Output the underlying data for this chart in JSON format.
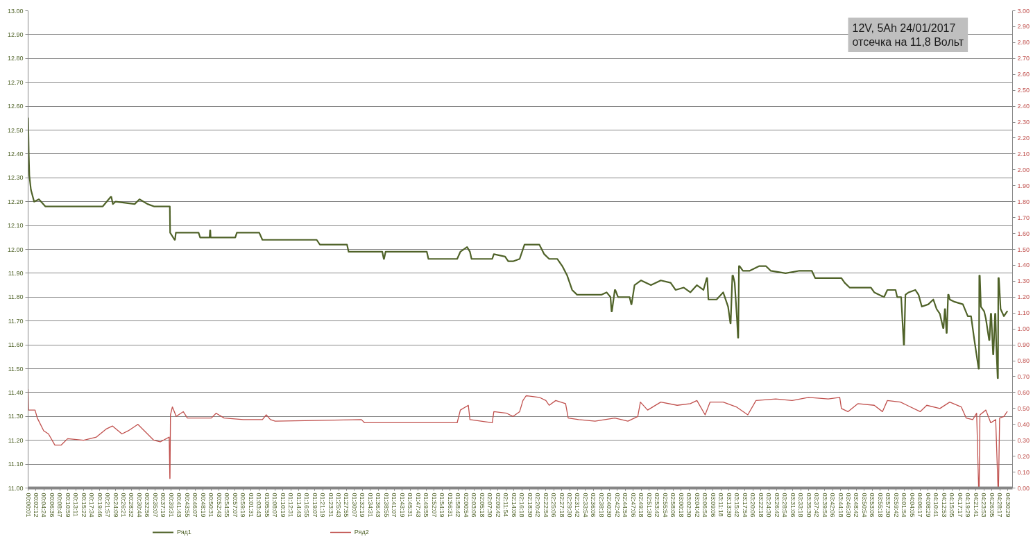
{
  "chart_data": {
    "type": "line",
    "annotations": [
      "12V, 5Ah  24/01/2017",
      "отсечка на 11,8 Вольт"
    ],
    "xlim": [
      0,
      4.53
    ],
    "xticks": [
      {
        "value": 0.0003,
        "label": "00:00:01"
      },
      {
        "value": 0.0367,
        "label": "00:02:12"
      },
      {
        "value": 0.0733,
        "label": "00:04:24"
      },
      {
        "value": 0.11,
        "label": "00:06:36"
      },
      {
        "value": 0.1464,
        "label": "00:08:47"
      },
      {
        "value": 0.1831,
        "label": "00:10:59"
      },
      {
        "value": 0.2197,
        "label": "00:13:11"
      },
      {
        "value": 0.2561,
        "label": "00:15:22"
      },
      {
        "value": 0.2928,
        "label": "00:17:34"
      },
      {
        "value": 0.3294,
        "label": "00:19:46"
      },
      {
        "value": 0.3658,
        "label": "00:21:57"
      },
      {
        "value": 0.4025,
        "label": "00:24:09"
      },
      {
        "value": 0.4392,
        "label": "00:26:21"
      },
      {
        "value": 0.4756,
        "label": "00:28:32"
      },
      {
        "value": 0.5122,
        "label": "00:30:44"
      },
      {
        "value": 0.5489,
        "label": "00:32:56"
      },
      {
        "value": 0.5853,
        "label": "00:35:07"
      },
      {
        "value": 0.6219,
        "label": "00:37:19"
      },
      {
        "value": 0.6586,
        "label": "00:39:31"
      },
      {
        "value": 0.6953,
        "label": "00:41:43"
      },
      {
        "value": 0.7319,
        "label": "00:43:55"
      },
      {
        "value": 0.7686,
        "label": "00:46:07"
      },
      {
        "value": 0.8053,
        "label": "00:48:19"
      },
      {
        "value": 0.8419,
        "label": "00:50:31"
      },
      {
        "value": 0.8786,
        "label": "00:52:43"
      },
      {
        "value": 0.9153,
        "label": "00:54:55"
      },
      {
        "value": 0.9519,
        "label": "00:57:07"
      },
      {
        "value": 0.9886,
        "label": "00:59:19"
      },
      {
        "value": 1.0253,
        "label": "01:01:31"
      },
      {
        "value": 1.0619,
        "label": "01:03:43"
      },
      {
        "value": 1.0986,
        "label": "01:05:55"
      },
      {
        "value": 1.1353,
        "label": "01:08:07"
      },
      {
        "value": 1.1719,
        "label": "01:10:19"
      },
      {
        "value": 1.2086,
        "label": "01:12:31"
      },
      {
        "value": 1.2453,
        "label": "01:14:43"
      },
      {
        "value": 1.2819,
        "label": "01:16:55"
      },
      {
        "value": 1.3186,
        "label": "01:19:07"
      },
      {
        "value": 1.3553,
        "label": "01:21:19"
      },
      {
        "value": 1.3919,
        "label": "01:23:31"
      },
      {
        "value": 1.4286,
        "label": "01:25:43"
      },
      {
        "value": 1.4653,
        "label": "01:27:55"
      },
      {
        "value": 1.5019,
        "label": "01:30:07"
      },
      {
        "value": 1.5386,
        "label": "01:32:19"
      },
      {
        "value": 1.5753,
        "label": "01:34:31"
      },
      {
        "value": 1.6119,
        "label": "01:36:43"
      },
      {
        "value": 1.6486,
        "label": "01:38:55"
      },
      {
        "value": 1.6853,
        "label": "01:41:07"
      },
      {
        "value": 1.7219,
        "label": "01:43:19"
      },
      {
        "value": 1.7586,
        "label": "01:45:31"
      },
      {
        "value": 1.7953,
        "label": "01:47:43"
      },
      {
        "value": 1.8319,
        "label": "01:49:55"
      },
      {
        "value": 1.8686,
        "label": "01:52:07"
      },
      {
        "value": 1.9053,
        "label": "01:54:19"
      },
      {
        "value": 1.9419,
        "label": "01:56:31"
      },
      {
        "value": 1.9783,
        "label": "01:58:42"
      },
      {
        "value": 2.015,
        "label": "02:00:54"
      },
      {
        "value": 2.0517,
        "label": "02:03:06"
      },
      {
        "value": 2.0883,
        "label": "02:05:18"
      },
      {
        "value": 2.125,
        "label": "02:07:30"
      },
      {
        "value": 2.1617,
        "label": "02:09:42"
      },
      {
        "value": 2.1983,
        "label": "02:11:54"
      },
      {
        "value": 2.235,
        "label": "02:14:06"
      },
      {
        "value": 2.2717,
        "label": "02:16:18"
      },
      {
        "value": 2.3083,
        "label": "02:18:30"
      },
      {
        "value": 2.345,
        "label": "02:20:42"
      },
      {
        "value": 2.3817,
        "label": "02:22:54"
      },
      {
        "value": 2.4183,
        "label": "02:25:06"
      },
      {
        "value": 2.455,
        "label": "02:27:18"
      },
      {
        "value": 2.4917,
        "label": "02:29:30"
      },
      {
        "value": 2.5283,
        "label": "02:31:42"
      },
      {
        "value": 2.565,
        "label": "02:33:54"
      },
      {
        "value": 2.6017,
        "label": "02:36:06"
      },
      {
        "value": 2.6383,
        "label": "02:38:18"
      },
      {
        "value": 2.675,
        "label": "02:40:30"
      },
      {
        "value": 2.7117,
        "label": "02:42:42"
      },
      {
        "value": 2.7483,
        "label": "02:44:54"
      },
      {
        "value": 2.785,
        "label": "02:47:06"
      },
      {
        "value": 2.8217,
        "label": "02:49:18"
      },
      {
        "value": 2.8583,
        "label": "02:51:30"
      },
      {
        "value": 2.895,
        "label": "02:53:42"
      },
      {
        "value": 2.9317,
        "label": "02:55:54"
      },
      {
        "value": 2.9683,
        "label": "02:58:06"
      },
      {
        "value": 3.005,
        "label": "03:00:18"
      },
      {
        "value": 3.0417,
        "label": "03:02:30"
      },
      {
        "value": 3.0783,
        "label": "03:04:42"
      },
      {
        "value": 3.115,
        "label": "03:06:54"
      },
      {
        "value": 3.1517,
        "label": "03:09:06"
      },
      {
        "value": 3.1883,
        "label": "03:11:18"
      },
      {
        "value": 3.225,
        "label": "03:13:30"
      },
      {
        "value": 3.2617,
        "label": "03:15:42"
      },
      {
        "value": 3.2983,
        "label": "03:17:54"
      },
      {
        "value": 3.335,
        "label": "03:20:06"
      },
      {
        "value": 3.3717,
        "label": "03:22:18"
      },
      {
        "value": 3.4083,
        "label": "03:24:30"
      },
      {
        "value": 3.445,
        "label": "03:26:42"
      },
      {
        "value": 3.4817,
        "label": "03:28:54"
      },
      {
        "value": 3.5183,
        "label": "03:31:06"
      },
      {
        "value": 3.555,
        "label": "03:33:18"
      },
      {
        "value": 3.5917,
        "label": "03:35:30"
      },
      {
        "value": 3.6283,
        "label": "03:37:42"
      },
      {
        "value": 3.665,
        "label": "03:39:54"
      },
      {
        "value": 3.7017,
        "label": "03:42:06"
      },
      {
        "value": 3.7383,
        "label": "03:44:18"
      },
      {
        "value": 3.775,
        "label": "03:46:30"
      },
      {
        "value": 3.8117,
        "label": "03:48:42"
      },
      {
        "value": 3.8483,
        "label": "03:50:54"
      },
      {
        "value": 3.885,
        "label": "03:53:06"
      },
      {
        "value": 3.9217,
        "label": "03:55:18"
      },
      {
        "value": 3.9583,
        "label": "03:57:30"
      },
      {
        "value": 3.995,
        "label": "03:59:42"
      },
      {
        "value": 4.0317,
        "label": "04:01:54"
      },
      {
        "value": 4.0681,
        "label": "04:04:05"
      },
      {
        "value": 4.1047,
        "label": "04:06:17"
      },
      {
        "value": 4.1414,
        "label": "04:08:29"
      },
      {
        "value": 4.1781,
        "label": "04:10:41"
      },
      {
        "value": 4.2147,
        "label": "04:12:53"
      },
      {
        "value": 4.2514,
        "label": "04:15:05"
      },
      {
        "value": 4.2881,
        "label": "04:17:17"
      },
      {
        "value": 4.3247,
        "label": "04:19:29"
      },
      {
        "value": 4.3614,
        "label": "04:21:41"
      },
      {
        "value": 4.3981,
        "label": "04:23:53"
      },
      {
        "value": 4.4347,
        "label": "04:26:05"
      },
      {
        "value": 4.4714,
        "label": "04:28:17"
      },
      {
        "value": 4.5081,
        "label": "04:30:29"
      }
    ],
    "ylim": [
      11,
      13
    ],
    "yticks": [
      {
        "value": 11,
        "label": "11.00"
      },
      {
        "value": 11.1,
        "label": "11.10"
      },
      {
        "value": 11.2,
        "label": "11.20"
      },
      {
        "value": 11.3,
        "label": "11.30"
      },
      {
        "value": 11.4,
        "label": "11.40"
      },
      {
        "value": 11.5,
        "label": "11.50"
      },
      {
        "value": 11.6,
        "label": "11.60"
      },
      {
        "value": 11.7,
        "label": "11.70"
      },
      {
        "value": 11.8,
        "label": "11.80"
      },
      {
        "value": 11.9,
        "label": "11.90"
      },
      {
        "value": 12,
        "label": "12.00"
      },
      {
        "value": 12.1,
        "label": "12.10"
      },
      {
        "value": 12.2,
        "label": "12.20"
      },
      {
        "value": 12.3,
        "label": "12.30"
      },
      {
        "value": 12.4,
        "label": "12.40"
      },
      {
        "value": 12.5,
        "label": "12.50"
      },
      {
        "value": 12.6,
        "label": "12.60"
      },
      {
        "value": 12.7,
        "label": "12.70"
      },
      {
        "value": 12.8,
        "label": "12.80"
      },
      {
        "value": 12.9,
        "label": "12.90"
      },
      {
        "value": 13,
        "label": "13.00"
      }
    ],
    "y2lim": [
      0,
      3
    ],
    "y2ticks": [
      {
        "value": 0,
        "label": "0.00"
      },
      {
        "value": 0.1,
        "label": "0.10"
      },
      {
        "value": 0.2,
        "label": "0.20"
      },
      {
        "value": 0.3,
        "label": "0.30"
      },
      {
        "value": 0.4,
        "label": "0.40"
      },
      {
        "value": 0.5,
        "label": "0.50"
      },
      {
        "value": 0.6,
        "label": "0.60"
      },
      {
        "value": 0.7,
        "label": "0.70"
      },
      {
        "value": 0.8,
        "label": "0.80"
      },
      {
        "value": 0.9,
        "label": "0.90"
      },
      {
        "value": 1,
        "label": "1.00"
      },
      {
        "value": 1.1,
        "label": "1.10"
      },
      {
        "value": 1.2,
        "label": "1.20"
      },
      {
        "value": 1.3,
        "label": "1.30"
      },
      {
        "value": 1.4,
        "label": "1.40"
      },
      {
        "value": 1.5,
        "label": "1.50"
      },
      {
        "value": 1.6,
        "label": "1.60"
      },
      {
        "value": 1.7,
        "label": "1.70"
      },
      {
        "value": 1.8,
        "label": "1.80"
      },
      {
        "value": 1.9,
        "label": "1.90"
      },
      {
        "value": 2,
        "label": "2.00"
      },
      {
        "value": 2.1,
        "label": "2.10"
      },
      {
        "value": 2.2,
        "label": "2.20"
      },
      {
        "value": 2.3,
        "label": "2.30"
      },
      {
        "value": 2.4,
        "label": "2.40"
      },
      {
        "value": 2.5,
        "label": "2.50"
      },
      {
        "value": 2.6,
        "label": "2.60"
      },
      {
        "value": 2.7,
        "label": "2.70"
      },
      {
        "value": 2.8,
        "label": "2.80"
      },
      {
        "value": 2.9,
        "label": "2.90"
      },
      {
        "value": 3,
        "label": "3.00"
      }
    ],
    "grid": "y",
    "legend": "bottom",
    "series": [
      {
        "name": "Ряд1",
        "color": "#4f6228",
        "x": [
          0.0003,
          0.003,
          0.0057,
          0.013,
          0.0278,
          0.0498,
          0.0792,
          0.1086,
          0.226,
          0.3436,
          0.3804,
          0.383,
          0.39,
          0.4024,
          0.4905,
          0.5126,
          0.5494,
          0.5788,
          0.6522,
          0.6536,
          0.6742,
          0.676,
          0.68,
          0.7845,
          0.7917,
          0.835,
          0.8373,
          0.8385,
          0.84,
          0.9533,
          0.9607,
          1.0636,
          1.0783,
          1.328,
          1.3427,
          1.4675,
          1.4749,
          1.63,
          1.6366,
          1.638,
          1.645,
          1.8348,
          1.8422,
          1.9744,
          1.9891,
          2.02,
          2.0332,
          2.0406,
          2.1358,
          2.1432,
          2.1948,
          2.2095,
          2.2315,
          2.2619,
          2.2843,
          2.3524,
          2.375,
          2.3978,
          2.4355,
          2.4581,
          2.4808,
          2.5034,
          2.5261,
          2.6394,
          2.662,
          2.68,
          2.6847,
          2.6865,
          2.6998,
          2.702,
          2.7149,
          2.7678,
          2.7754,
          2.777,
          2.7905,
          2.8207,
          2.8661,
          2.9114,
          2.9567,
          2.9794,
          3.0172,
          3.0474,
          3.0776,
          3.1078,
          3.1229,
          3.125,
          3.1305,
          3.1683,
          3.1985,
          3.2211,
          3.2317,
          3.233,
          3.2408,
          3.244,
          3.2514,
          3.262,
          3.2666,
          3.268,
          3.2711,
          3.274,
          3.2892,
          3.3195,
          3.3648,
          3.395,
          3.4177,
          3.4857,
          3.5461,
          3.6066,
          3.6217,
          3.7425,
          3.7576,
          3.7803,
          3.8785,
          3.8936,
          3.9389,
          3.954,
          3.9918,
          3.9993,
          4.0175,
          4.0296,
          4.031,
          4.0371,
          4.0522,
          4.0824,
          4.0975,
          4.1126,
          4.1428,
          4.1655,
          4.1806,
          4.1957,
          4.2108,
          4.2125,
          4.2184,
          4.22,
          4.2259,
          4.2275,
          4.2335,
          4.236,
          4.241,
          4.2637,
          4.3015,
          4.3241,
          4.3392,
          4.3543,
          4.374,
          4.3755,
          4.377,
          4.3795,
          4.3845,
          4.3996,
          4.4072,
          4.4223,
          4.424,
          4.4298,
          4.432,
          4.4404,
          4.442,
          4.4495,
          4.4515,
          4.4555,
          4.4615,
          4.463,
          4.4646,
          4.467,
          4.4751,
          4.4902,
          4.5053
        ],
        "values": [
          12.55,
          12.4,
          12.31,
          12.25,
          12.2,
          12.21,
          12.18,
          12.18,
          12.18,
          12.18,
          12.22,
          12.22,
          12.19,
          12.2,
          12.19,
          12.21,
          12.19,
          12.18,
          12.18,
          12.07,
          12.04,
          12.04,
          12.07,
          12.07,
          12.05,
          12.05,
          12.08,
          12.08,
          12.05,
          12.05,
          12.07,
          12.07,
          12.04,
          12.04,
          12.02,
          12.02,
          11.99,
          11.99,
          11.96,
          11.96,
          11.99,
          11.99,
          11.96,
          11.96,
          11.99,
          12.01,
          11.99,
          11.96,
          11.96,
          11.98,
          11.97,
          11.95,
          11.95,
          11.96,
          12.02,
          12.02,
          11.98,
          11.96,
          11.96,
          11.93,
          11.89,
          11.83,
          11.81,
          11.81,
          11.82,
          11.8,
          11.74,
          11.74,
          11.83,
          11.83,
          11.8,
          11.8,
          11.77,
          11.77,
          11.85,
          11.87,
          11.85,
          11.87,
          11.86,
          11.83,
          11.84,
          11.82,
          11.85,
          11.83,
          11.88,
          11.88,
          11.79,
          11.79,
          11.82,
          11.76,
          11.69,
          11.69,
          11.89,
          11.89,
          11.86,
          11.71,
          11.63,
          11.63,
          11.93,
          11.93,
          11.91,
          11.91,
          11.93,
          11.93,
          11.91,
          11.9,
          11.91,
          11.91,
          11.88,
          11.88,
          11.86,
          11.84,
          11.84,
          11.82,
          11.8,
          11.83,
          11.83,
          11.8,
          11.8,
          11.6,
          11.6,
          11.81,
          11.82,
          11.83,
          11.81,
          11.76,
          11.77,
          11.79,
          11.75,
          11.73,
          11.67,
          11.67,
          11.75,
          11.75,
          11.65,
          11.65,
          11.81,
          11.81,
          11.79,
          11.78,
          11.77,
          11.72,
          11.72,
          11.62,
          11.5,
          11.5,
          11.89,
          11.89,
          11.76,
          11.74,
          11.71,
          11.62,
          11.62,
          11.73,
          11.73,
          11.56,
          11.56,
          11.73,
          11.73,
          11.59,
          11.46,
          11.46,
          11.88,
          11.88,
          11.75,
          11.72,
          11.74
        ]
      },
      {
        "name": "Ряд2",
        "color": "#c0504d",
        "axis": "y2",
        "x": [
          0.0003,
          0.002,
          0.032,
          0.0424,
          0.0718,
          0.0938,
          0.1232,
          0.1526,
          0.182,
          0.2555,
          0.3143,
          0.3584,
          0.3878,
          0.4318,
          0.4612,
          0.5052,
          0.542,
          0.5787,
          0.6081,
          0.6493,
          0.6522,
          0.653,
          0.6551,
          0.6639,
          0.6816,
          0.7139,
          0.733,
          0.7845,
          0.8432,
          0.8652,
          0.902,
          0.9901,
          1.0783,
          1.0959,
          1.115,
          1.137,
          1.5337,
          1.5484,
          1.9744,
          1.9891,
          2.0258,
          2.0332,
          2.1358,
          2.1432,
          2.2021,
          2.2315,
          2.2619,
          2.277,
          2.2917,
          2.3524,
          2.3826,
          2.3978,
          2.428,
          2.4733,
          2.4854,
          2.5336,
          2.6091,
          2.6998,
          2.7602,
          2.8055,
          2.8176,
          2.8508,
          2.9114,
          2.9869,
          3.0474,
          3.0776,
          3.1154,
          3.138,
          3.1985,
          3.2589,
          3.3118,
          3.3496,
          3.4402,
          3.5158,
          3.5913,
          3.6821,
          3.7349,
          3.7425,
          3.7727,
          3.818,
          3.8936,
          3.9314,
          3.954,
          4.0144,
          4.0446,
          4.105,
          4.1353,
          4.1957,
          4.241,
          4.2939,
          4.3166,
          4.3468,
          4.3649,
          4.374,
          4.3765,
          4.38,
          4.4072,
          4.4298,
          4.4525,
          4.4631,
          4.4655,
          4.4706,
          4.4902,
          4.5053
        ],
        "values": [
          0.62,
          0.49,
          0.49,
          0.44,
          0.36,
          0.34,
          0.27,
          0.27,
          0.31,
          0.3,
          0.32,
          0.37,
          0.39,
          0.34,
          0.36,
          0.4,
          0.35,
          0.3,
          0.29,
          0.32,
          0.06,
          0.06,
          0.46,
          0.51,
          0.45,
          0.48,
          0.44,
          0.44,
          0.44,
          0.47,
          0.44,
          0.43,
          0.43,
          0.46,
          0.43,
          0.42,
          0.43,
          0.41,
          0.41,
          0.49,
          0.52,
          0.43,
          0.41,
          0.48,
          0.47,
          0.45,
          0.48,
          0.55,
          0.58,
          0.57,
          0.55,
          0.52,
          0.55,
          0.53,
          0.44,
          0.43,
          0.42,
          0.44,
          0.42,
          0.45,
          0.54,
          0.49,
          0.54,
          0.52,
          0.53,
          0.55,
          0.46,
          0.54,
          0.54,
          0.51,
          0.46,
          0.55,
          0.56,
          0.55,
          0.57,
          0.56,
          0.57,
          0.5,
          0.48,
          0.53,
          0.52,
          0.48,
          0.55,
          0.54,
          0.52,
          0.48,
          0.52,
          0.5,
          0.54,
          0.51,
          0.44,
          0.43,
          0.47,
          0,
          0,
          0.46,
          0.49,
          0.41,
          0.43,
          0,
          0,
          0.44,
          0.45,
          0.48
        ]
      }
    ]
  }
}
